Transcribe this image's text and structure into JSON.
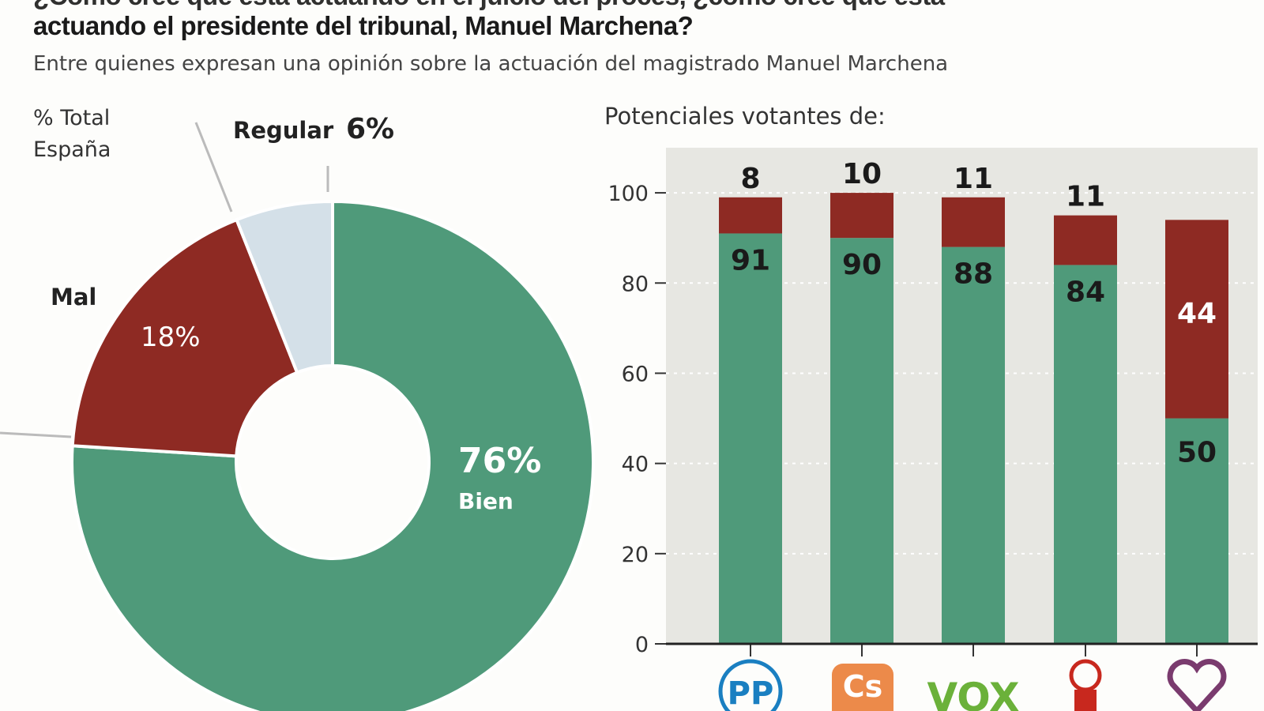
{
  "title_line1": "¿Cómo cree que está actuando en el juicio del procés, ¿cómo cree que está",
  "title_line2": "actuando el presidente del tribunal, Manuel Marchena?",
  "subtitle": "Entre quienes expresan una opinión sobre la actuación del magistrado Manuel Marchena",
  "colors": {
    "bien": "#4f9a7a",
    "mal": "#8e2a23",
    "regular": "#d4e0e8",
    "plot_bg": "#e7e7e2"
  },
  "chart_data": [
    {
      "type": "pie",
      "variant": "donut",
      "label": "% Total España",
      "slices": [
        {
          "name": "Bien",
          "value": 76,
          "label": "76%"
        },
        {
          "name": "Mal",
          "value": 18,
          "label": "18%"
        },
        {
          "name": "Regular",
          "value": 6,
          "label": "6%"
        }
      ]
    },
    {
      "type": "bar",
      "stacked": true,
      "title": "Potenciales votantes de:",
      "categories": [
        "PP",
        "Cs",
        "VOX",
        "PSOE",
        "Podemos"
      ],
      "category_icons": [
        "pp-logo",
        "cs-logo",
        "vox-logo",
        "psoe-logo",
        "podemos-logo"
      ],
      "series": [
        {
          "key": "bien",
          "values": [
            91,
            90,
            88,
            84,
            50
          ]
        },
        {
          "key": "mal",
          "values": [
            8,
            10,
            11,
            11,
            44
          ]
        }
      ],
      "ylim": [
        0,
        110
      ],
      "yticks": [
        0,
        20,
        40,
        60,
        80,
        100
      ],
      "grid": true
    }
  ]
}
